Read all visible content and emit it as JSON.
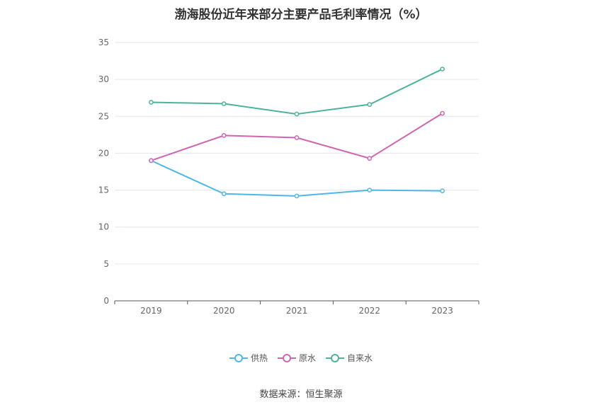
{
  "chart_data": {
    "type": "line",
    "title": "渤海股份近年来部分主要产品毛利率情况（%）",
    "categories": [
      "2019",
      "2020",
      "2021",
      "2022",
      "2023"
    ],
    "ylim": [
      0,
      35
    ],
    "yticks": [
      0,
      5,
      10,
      15,
      20,
      25,
      30,
      35
    ],
    "grid": true,
    "legend_position": "bottom",
    "series": [
      {
        "name": "供热",
        "color": "#4db8e8",
        "values": [
          19.0,
          14.5,
          14.2,
          15.0,
          14.9
        ]
      },
      {
        "name": "原水",
        "color": "#d064b0",
        "values": [
          19.0,
          22.4,
          22.1,
          19.3,
          25.4
        ]
      },
      {
        "name": "自来水",
        "color": "#4cb39a",
        "values": [
          26.9,
          26.7,
          25.3,
          26.6,
          31.4
        ]
      }
    ]
  },
  "source": "数据来源：恒生聚源"
}
